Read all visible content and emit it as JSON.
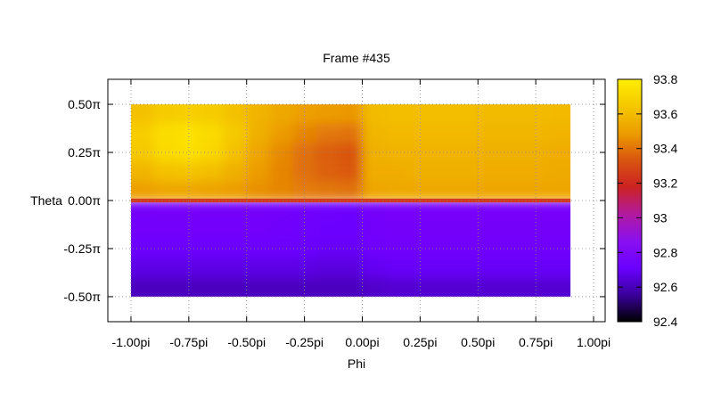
{
  "chart_data": {
    "type": "heatmap",
    "title": "Frame #435",
    "xlabel": "Phi",
    "ylabel": "Theta",
    "xlim": [
      -1.1,
      1.05
    ],
    "ylim": [
      -0.63,
      0.63
    ],
    "data_extent_x": [
      -1.0,
      0.9
    ],
    "data_extent_y": [
      -0.5,
      0.5
    ],
    "x_ticks": [
      {
        "value": -1.0,
        "label": "-1.00pi"
      },
      {
        "value": -0.75,
        "label": "-0.75pi"
      },
      {
        "value": -0.5,
        "label": "-0.50pi"
      },
      {
        "value": -0.25,
        "label": "-0.25pi"
      },
      {
        "value": 0.0,
        "label": "0.00pi"
      },
      {
        "value": 0.25,
        "label": "0.25pi"
      },
      {
        "value": 0.5,
        "label": "0.50pi"
      },
      {
        "value": 0.75,
        "label": "0.75pi"
      },
      {
        "value": 1.0,
        "label": "1.00pi"
      }
    ],
    "y_ticks": [
      {
        "value": 0.5,
        "label": "0.50π"
      },
      {
        "value": 0.25,
        "label": "0.25π"
      },
      {
        "value": 0.0,
        "label": "0.00π"
      },
      {
        "value": -0.25,
        "label": "-0.25π"
      },
      {
        "value": -0.5,
        "label": "-0.50π"
      }
    ],
    "grid": true,
    "colorbar": {
      "min": 92.4,
      "max": 93.8,
      "ticks": [
        {
          "value": 93.8,
          "label": "93.8"
        },
        {
          "value": 93.6,
          "label": "93.6"
        },
        {
          "value": 93.4,
          "label": "93.4"
        },
        {
          "value": 93.2,
          "label": "93.2"
        },
        {
          "value": 93.0,
          "label": "93"
        },
        {
          "value": 92.8,
          "label": "92.8"
        },
        {
          "value": 92.6,
          "label": "92.6"
        },
        {
          "value": 92.4,
          "label": "92.4"
        }
      ],
      "palette": [
        "#000000",
        "#3a009c",
        "#6a00ff",
        "#8a10f0",
        "#b21a9e",
        "#cc2222",
        "#d9550f",
        "#ec9c00",
        "#f5c800",
        "#ffee00"
      ]
    },
    "z_grid": {
      "x": [
        -0.95,
        -0.85,
        -0.75,
        -0.65,
        -0.55,
        -0.45,
        -0.35,
        -0.25,
        -0.15,
        -0.05,
        0.05,
        0.15,
        0.25,
        0.35,
        0.45,
        0.55,
        0.65,
        0.75,
        0.85
      ],
      "y": [
        0.45,
        0.35,
        0.25,
        0.15,
        0.05,
        -0.05,
        -0.15,
        -0.25,
        -0.35,
        -0.45
      ],
      "values": [
        [
          93.62,
          93.66,
          93.67,
          93.66,
          93.62,
          93.57,
          93.53,
          93.5,
          93.49,
          93.48,
          93.6,
          93.61,
          93.61,
          93.61,
          93.61,
          93.6,
          93.6,
          93.6,
          93.59
        ],
        [
          93.67,
          93.73,
          93.75,
          93.72,
          93.65,
          93.56,
          93.49,
          93.44,
          93.41,
          93.4,
          93.58,
          93.59,
          93.59,
          93.59,
          93.59,
          93.58,
          93.58,
          93.58,
          93.57
        ],
        [
          93.65,
          93.72,
          93.74,
          93.7,
          93.62,
          93.52,
          93.45,
          93.39,
          93.35,
          93.33,
          93.56,
          93.57,
          93.57,
          93.57,
          93.57,
          93.56,
          93.56,
          93.56,
          93.55
        ],
        [
          93.58,
          93.62,
          93.63,
          93.61,
          93.56,
          93.49,
          93.44,
          93.39,
          93.36,
          93.34,
          93.55,
          93.55,
          93.56,
          93.56,
          93.56,
          93.55,
          93.55,
          93.55,
          93.54
        ],
        [
          93.5,
          93.52,
          93.52,
          93.51,
          93.49,
          93.46,
          93.44,
          93.42,
          93.41,
          93.4,
          93.52,
          93.53,
          93.53,
          93.53,
          93.53,
          93.52,
          93.52,
          93.52,
          93.52
        ],
        [
          92.76,
          92.77,
          92.77,
          92.76,
          92.76,
          92.76,
          92.75,
          92.74,
          92.73,
          92.72,
          92.76,
          92.77,
          92.77,
          92.77,
          92.77,
          92.77,
          92.77,
          92.77,
          92.77
        ],
        [
          92.75,
          92.75,
          92.75,
          92.75,
          92.75,
          92.75,
          92.74,
          92.73,
          92.72,
          92.72,
          92.75,
          92.76,
          92.76,
          92.76,
          92.76,
          92.76,
          92.76,
          92.76,
          92.76
        ],
        [
          92.72,
          92.72,
          92.72,
          92.72,
          92.72,
          92.72,
          92.72,
          92.71,
          92.7,
          92.7,
          92.73,
          92.74,
          92.74,
          92.74,
          92.74,
          92.74,
          92.74,
          92.74,
          92.74
        ],
        [
          92.67,
          92.67,
          92.67,
          92.67,
          92.67,
          92.67,
          92.67,
          92.67,
          92.66,
          92.66,
          92.69,
          92.7,
          92.7,
          92.7,
          92.7,
          92.7,
          92.7,
          92.7,
          92.7
        ],
        [
          92.61,
          92.61,
          92.61,
          92.61,
          92.61,
          92.61,
          92.61,
          92.61,
          92.61,
          92.61,
          92.63,
          92.64,
          92.64,
          92.64,
          92.64,
          92.64,
          92.64,
          92.64,
          92.64
        ]
      ]
    },
    "boundary_band": {
      "y_range": [
        -0.01,
        0.01
      ],
      "value": 93.25
    }
  }
}
